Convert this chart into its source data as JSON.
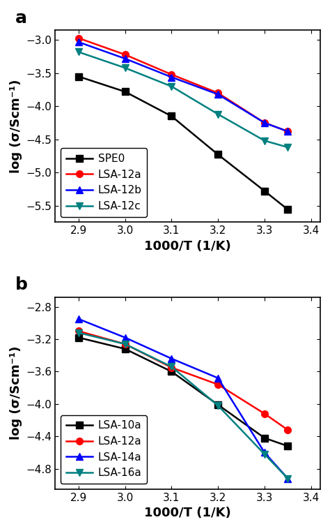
{
  "panel_a": {
    "x": [
      2.9,
      3.0,
      3.1,
      3.2,
      3.3,
      3.35
    ],
    "series": {
      "SPE0": {
        "y": [
          -3.55,
          -3.78,
          -4.15,
          -4.73,
          -5.28,
          -5.56
        ],
        "color": "#000000",
        "marker": "s",
        "label": "SPE0"
      },
      "LSA-12a": {
        "y": [
          -2.97,
          -3.22,
          -3.52,
          -3.8,
          -4.25,
          -4.38
        ],
        "color": "#ff0000",
        "marker": "o",
        "label": "LSA-12a"
      },
      "LSA-12b": {
        "y": [
          -3.03,
          -3.28,
          -3.56,
          -3.82,
          -4.25,
          -4.38
        ],
        "color": "#0000ff",
        "marker": "^",
        "label": "LSA-12b"
      },
      "LSA-12c": {
        "y": [
          -3.18,
          -3.42,
          -3.7,
          -4.12,
          -4.52,
          -4.62
        ],
        "color": "#008080",
        "marker": "v",
        "label": "LSA-12c"
      }
    },
    "xlabel": "1000/T (1/K)",
    "ylabel": "log (σ/Scm⁻¹)",
    "xlim": [
      2.85,
      3.42
    ],
    "ylim": [
      -5.75,
      -2.85
    ],
    "xticks": [
      2.9,
      3.0,
      3.1,
      3.2,
      3.3,
      3.4
    ],
    "yticks": [
      -3.0,
      -3.5,
      -4.0,
      -4.5,
      -5.0,
      -5.5
    ],
    "panel_label": "a"
  },
  "panel_b": {
    "x": [
      2.9,
      3.0,
      3.1,
      3.2,
      3.3,
      3.35
    ],
    "series": {
      "LSA-10a": {
        "y": [
          -3.18,
          -3.32,
          -3.6,
          -4.01,
          -4.42,
          -4.52
        ],
        "color": "#000000",
        "marker": "s",
        "label": "LSA-10a"
      },
      "LSA-12a": {
        "y": [
          -3.1,
          -3.26,
          -3.55,
          -3.76,
          -4.12,
          -4.32
        ],
        "color": "#ff0000",
        "marker": "o",
        "label": "LSA-12a"
      },
      "LSA-14a": {
        "y": [
          -2.95,
          -3.18,
          -3.44,
          -3.68,
          -4.6,
          -4.92
        ],
        "color": "#0000ff",
        "marker": "^",
        "label": "LSA-14a"
      },
      "LSA-16a": {
        "y": [
          -3.12,
          -3.26,
          -3.54,
          -4.02,
          -4.62,
          -4.92
        ],
        "color": "#008080",
        "marker": "v",
        "label": "LSA-16a"
      }
    },
    "xlabel": "1000/T (1/K)",
    "ylabel": "log (σ/Scm⁻¹)",
    "xlim": [
      2.85,
      3.42
    ],
    "ylim": [
      -5.05,
      -2.68
    ],
    "xticks": [
      2.9,
      3.0,
      3.1,
      3.2,
      3.3,
      3.4
    ],
    "yticks": [
      -2.8,
      -3.2,
      -3.6,
      -4.0,
      -4.4,
      -4.8
    ],
    "panel_label": "b"
  },
  "linewidth": 1.8,
  "markersize": 7,
  "tick_fontsize": 11,
  "label_fontsize": 13,
  "legend_fontsize": 11,
  "panel_label_fontsize": 18
}
